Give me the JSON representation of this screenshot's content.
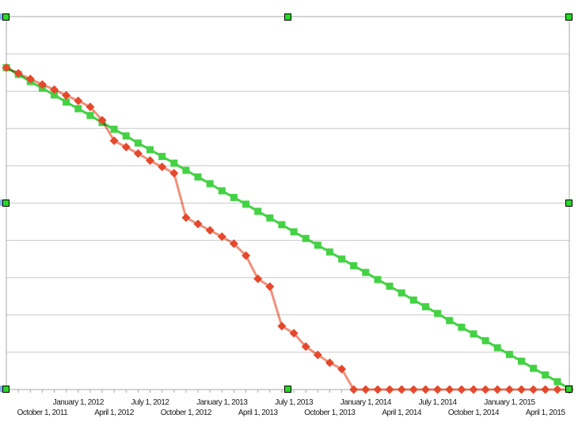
{
  "chart_data": {
    "type": "line",
    "title": "",
    "xlabel": "",
    "ylabel": "",
    "ylim": [
      0,
      100
    ],
    "y_axis_labels_visible": false,
    "note": "y-axis has no visible labels; values estimated as 0-100 of plot height",
    "grid": "horizontal, 10 equal intervals",
    "legend": "none",
    "x_tick_interval": "1 month",
    "x_label_interval": "3 months, staggered in two rows",
    "x": [
      "2011-07",
      "2011-08",
      "2011-09",
      "2011-10",
      "2011-11",
      "2011-12",
      "2012-01",
      "2012-02",
      "2012-03",
      "2012-04",
      "2012-05",
      "2012-06",
      "2012-07",
      "2012-08",
      "2012-09",
      "2012-10",
      "2012-11",
      "2012-12",
      "2013-01",
      "2013-02",
      "2013-03",
      "2013-04",
      "2013-05",
      "2013-06",
      "2013-07",
      "2013-08",
      "2013-09",
      "2013-10",
      "2013-11",
      "2013-12",
      "2014-01",
      "2014-02",
      "2014-03",
      "2014-04",
      "2014-05",
      "2014-06",
      "2014-07",
      "2014-08",
      "2014-09",
      "2014-10",
      "2014-11",
      "2014-12",
      "2015-01",
      "2015-02",
      "2015-03",
      "2015-04",
      "2015-05",
      "2015-06"
    ],
    "x_axis_labels": [
      {
        "label": "October 1, 2011",
        "index": 3,
        "row": "lower"
      },
      {
        "label": "January 1, 2012",
        "index": 6,
        "row": "upper"
      },
      {
        "label": "April 1, 2012",
        "index": 9,
        "row": "lower"
      },
      {
        "label": "July 1, 2012",
        "index": 12,
        "row": "upper"
      },
      {
        "label": "October 1, 2012",
        "index": 15,
        "row": "lower"
      },
      {
        "label": "January 1, 2013",
        "index": 18,
        "row": "upper"
      },
      {
        "label": "April 1, 2013",
        "index": 21,
        "row": "lower"
      },
      {
        "label": "July 1, 2013",
        "index": 24,
        "row": "upper"
      },
      {
        "label": "October 1, 2013",
        "index": 27,
        "row": "lower"
      },
      {
        "label": "January 1, 2014",
        "index": 30,
        "row": "upper"
      },
      {
        "label": "April 1, 2014",
        "index": 33,
        "row": "lower"
      },
      {
        "label": "July 1, 2014",
        "index": 36,
        "row": "upper"
      },
      {
        "label": "October 1, 2014",
        "index": 39,
        "row": "lower"
      },
      {
        "label": "January 1, 2015",
        "index": 42,
        "row": "upper"
      },
      {
        "label": "April 1, 2015",
        "index": 45,
        "row": "lower"
      }
    ],
    "series": [
      {
        "name": "green-squares-ideal",
        "marker": "square",
        "marker_color": "#44d244",
        "line_color": "#44d244",
        "values": [
          86.3,
          84.5,
          82.6,
          80.8,
          79.0,
          77.1,
          75.3,
          73.5,
          71.6,
          69.8,
          68.0,
          66.1,
          64.3,
          62.5,
          60.7,
          58.8,
          57.0,
          55.2,
          53.3,
          51.5,
          49.7,
          47.8,
          46.0,
          44.2,
          42.3,
          40.5,
          38.7,
          36.9,
          35.0,
          33.2,
          31.4,
          29.5,
          27.7,
          25.9,
          24.0,
          22.2,
          20.4,
          18.5,
          16.7,
          14.9,
          13.1,
          11.2,
          9.4,
          7.6,
          5.7,
          3.9,
          2.1,
          0.2
        ]
      },
      {
        "name": "red-diamonds-actual",
        "marker": "diamond",
        "marker_color": "#e5482c",
        "line_color": "#f2907c",
        "values": [
          86.3,
          84.8,
          83.3,
          81.8,
          80.4,
          78.9,
          77.4,
          75.8,
          72.2,
          66.7,
          65.0,
          63.3,
          61.4,
          59.7,
          58.0,
          46.1,
          44.4,
          42.7,
          41.0,
          39.1,
          35.9,
          29.7,
          27.6,
          17.0,
          15.1,
          11.5,
          9.3,
          7.2,
          5.5,
          0,
          0,
          0,
          0,
          0,
          0,
          0,
          0,
          0,
          0,
          0,
          0,
          0,
          0,
          0,
          0,
          0,
          0,
          0
        ]
      }
    ]
  },
  "colors": {
    "background": "#ffffff",
    "grid": "#c9c9c9",
    "plot_border": "#a8a8a8",
    "tick": "#a8a8a8",
    "axis_text": "#1a1a1a",
    "selection_handle_fill": "#29d829",
    "selection_handle_border": "#000000",
    "edge_fragment": "#85b8ea"
  },
  "selection": {
    "handles": [
      "top-left",
      "top-center",
      "top-right",
      "mid-left",
      "mid-right",
      "bottom-left",
      "bottom-center",
      "bottom-right"
    ],
    "edge_fragments": [
      "left-top",
      "left-middle",
      "left-bottom"
    ]
  }
}
